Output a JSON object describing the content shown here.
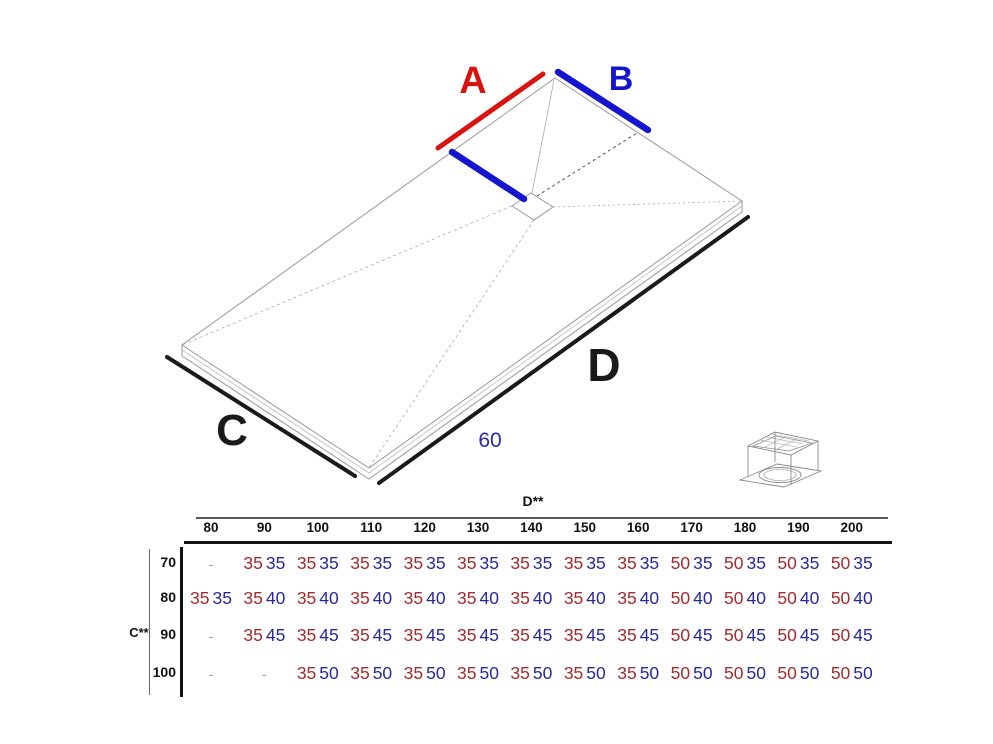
{
  "diagram": {
    "labels": {
      "a": "A",
      "b": "B",
      "c": "C",
      "d": "D",
      "drain_offset": "60"
    },
    "colors": {
      "a_red": "#d9140e",
      "b_blue": "#1515cf",
      "dimension_black": "#1a1a1a",
      "offset_blue": "#2a2aa5",
      "edge_gray": "#9a9a9a"
    }
  },
  "drain_icon": {
    "name": "drain-unit-icon"
  },
  "table": {
    "col_axis_label": "D**",
    "row_axis_label": "C**",
    "columns": [
      "80",
      "90",
      "100",
      "110",
      "120",
      "130",
      "140",
      "150",
      "160",
      "170",
      "180",
      "190",
      "200"
    ],
    "rows": [
      {
        "label": "70",
        "cells": [
          "-",
          [
            "35",
            "35"
          ],
          [
            "35",
            "35"
          ],
          [
            "35",
            "35"
          ],
          [
            "35",
            "35"
          ],
          [
            "35",
            "35"
          ],
          [
            "35",
            "35"
          ],
          [
            "35",
            "35"
          ],
          [
            "35",
            "35"
          ],
          [
            "50",
            "35"
          ],
          [
            "50",
            "35"
          ],
          [
            "50",
            "35"
          ],
          [
            "50",
            "35"
          ]
        ]
      },
      {
        "label": "80",
        "cells": [
          [
            "35",
            "35"
          ],
          [
            "35",
            "40"
          ],
          [
            "35",
            "40"
          ],
          [
            "35",
            "40"
          ],
          [
            "35",
            "40"
          ],
          [
            "35",
            "40"
          ],
          [
            "35",
            "40"
          ],
          [
            "35",
            "40"
          ],
          [
            "35",
            "40"
          ],
          [
            "50",
            "40"
          ],
          [
            "50",
            "40"
          ],
          [
            "50",
            "40"
          ],
          [
            "50",
            "40"
          ]
        ]
      },
      {
        "label": "90",
        "cells": [
          "-",
          [
            "35",
            "45"
          ],
          [
            "35",
            "45"
          ],
          [
            "35",
            "45"
          ],
          [
            "35",
            "45"
          ],
          [
            "35",
            "45"
          ],
          [
            "35",
            "45"
          ],
          [
            "35",
            "45"
          ],
          [
            "35",
            "45"
          ],
          [
            "50",
            "45"
          ],
          [
            "50",
            "45"
          ],
          [
            "50",
            "45"
          ],
          [
            "50",
            "45"
          ]
        ]
      },
      {
        "label": "100",
        "cells": [
          "-",
          "-",
          [
            "35",
            "50"
          ],
          [
            "35",
            "50"
          ],
          [
            "35",
            "50"
          ],
          [
            "35",
            "50"
          ],
          [
            "35",
            "50"
          ],
          [
            "35",
            "50"
          ],
          [
            "35",
            "50"
          ],
          [
            "50",
            "50"
          ],
          [
            "50",
            "50"
          ],
          [
            "50",
            "50"
          ],
          [
            "50",
            "50"
          ]
        ]
      }
    ],
    "value_colors": {
      "first": "#a42b2e",
      "second": "#28289e",
      "dash": "#9a9a9a"
    }
  }
}
